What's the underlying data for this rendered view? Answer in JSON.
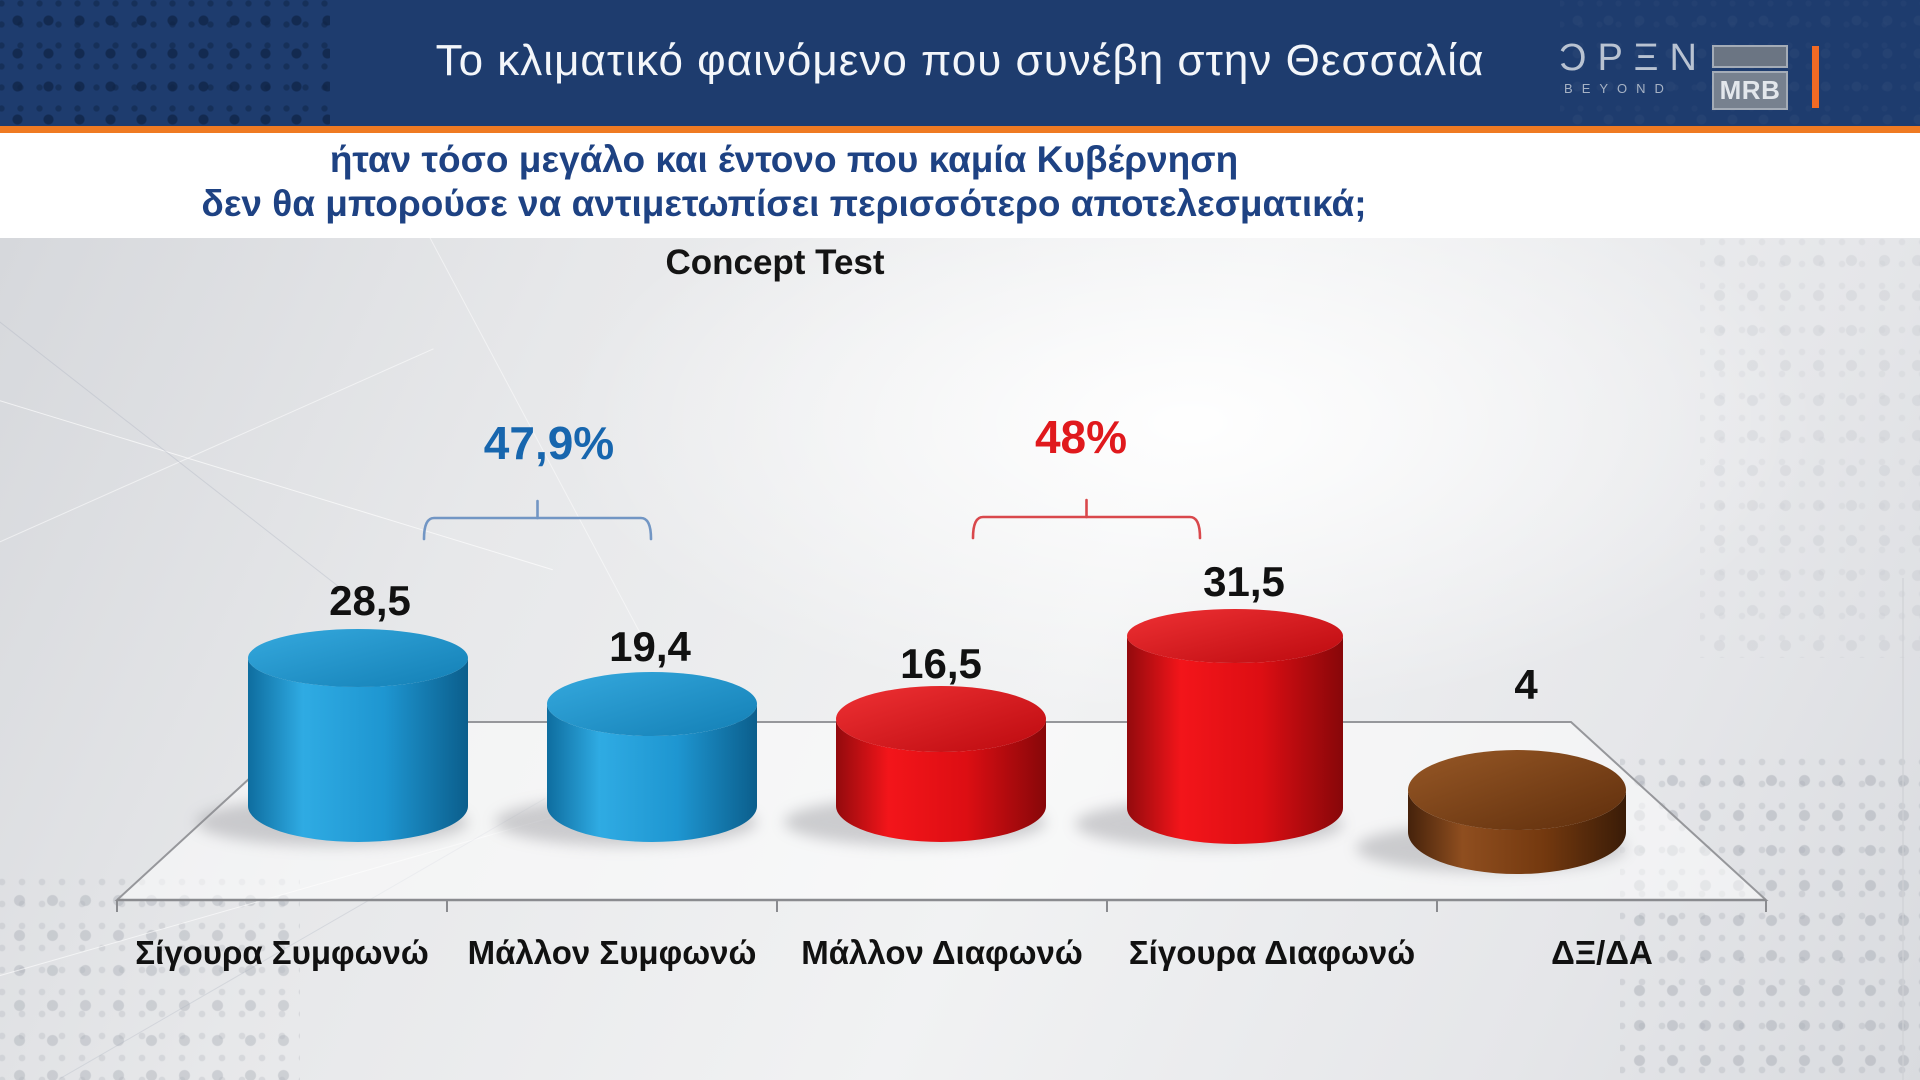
{
  "header": {
    "title": "Το κλιματικό φαινόμενο που συνέβη στην Θεσσαλία",
    "open_logo": {
      "text": "ƆPΞN",
      "subtext": "BEYOND"
    },
    "mrb_logo": {
      "text": "MRB"
    },
    "accent_orange": "#F26A24",
    "bg_color": "#1E3C6E"
  },
  "subtitle": {
    "line1": "ήταν τόσο μεγάλο και έντονο που καμία Κυβέρνηση",
    "line2": "δεν θα μπορούσε να αντιμετωπίσει περισσότερο αποτελεσματικά;",
    "color": "#1E4283"
  },
  "chart_data": {
    "type": "bar",
    "style": "3d-cylinder",
    "title": "Concept Test",
    "categories": [
      "Σίγουρα Συμφωνώ",
      "Μάλλον Συμφωνώ",
      "Μάλλον Διαφωνώ",
      "Σίγουρα Διαφωνώ",
      "ΔΞ/ΔΑ"
    ],
    "values": [
      28.5,
      19.4,
      16.5,
      31.5,
      4
    ],
    "value_labels": [
      "28,5",
      "19,4",
      "16,5",
      "31,5",
      "4"
    ],
    "bar_colors": [
      "#1E9AD6",
      "#1E9AD6",
      "#E8100F",
      "#E8100F",
      "#7A4018"
    ],
    "value_label_color": "#111111",
    "category_label_color": "#111111",
    "annotations": [
      {
        "label": "47,9%",
        "sum_of": [
          "Σίγουρα Συμφωνώ",
          "Μάλλον Συμφωνώ"
        ],
        "color": "#1766AE",
        "bracket_color": "#7296C4"
      },
      {
        "label": "48%",
        "sum_of": [
          "Μάλλον Διαφωνώ",
          "Σίγουρα Διαφωνώ"
        ],
        "color": "#E0191D",
        "bracket_color": "#D9484C"
      }
    ],
    "legend": false,
    "grid": false,
    "ylim": [
      0,
      35
    ]
  }
}
